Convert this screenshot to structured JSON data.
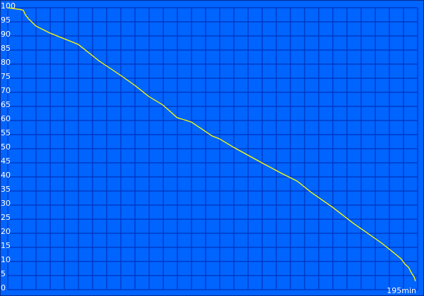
{
  "chart_data": {
    "type": "line",
    "title": "",
    "xlabel": "",
    "ylabel": "",
    "x_end_label": "195min",
    "xlim": [
      0,
      196
    ],
    "ylim": [
      0,
      100
    ],
    "yticks": [
      0,
      5,
      10,
      15,
      20,
      25,
      30,
      35,
      40,
      45,
      50,
      55,
      60,
      65,
      70,
      75,
      80,
      85,
      90,
      95,
      100
    ],
    "grid": true,
    "colors": {
      "background": "#0064ff",
      "grid": "#0033bb",
      "line": "#ffff00",
      "text": "#ffffff"
    },
    "series": [
      {
        "x": [
          0,
          6.7,
          7.5,
          8.4,
          10,
          13.5,
          20.2,
          28.7,
          33.7,
          37.1,
          43.9,
          48,
          54,
          60.7,
          67.5,
          74.2,
          81,
          87.7,
          97.8,
          101.2,
          108,
          121.5,
          131.6,
          138.4,
          145.1,
          155.2,
          165.3,
          172.1,
          178.8,
          183.9,
          188,
          190,
          191.6,
          193,
          194.3,
          195
        ],
        "y": [
          100,
          99.3,
          99,
          97.5,
          96,
          93.5,
          91,
          88.5,
          87,
          85,
          81,
          79,
          76,
          72.5,
          68.5,
          65.5,
          61,
          59.5,
          54.5,
          53.5,
          50.5,
          45,
          41,
          38.5,
          34.5,
          29.3,
          23.5,
          20,
          16.5,
          13.5,
          11,
          9,
          8,
          6,
          4.5,
          3
        ]
      }
    ]
  }
}
